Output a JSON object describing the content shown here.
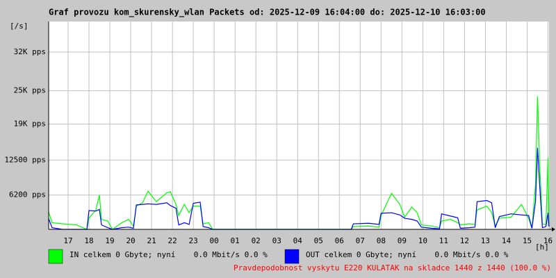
{
  "chart_data": {
    "type": "line",
    "title": "Graf provozu kom_skurensky_wlan Packets od: 2025-12-09 16:04:00 do: 2025-12-10 16:03:00",
    "ylabel": "[/s]",
    "xlabel": "[h]",
    "note": "Pravdepodobnost vyskytu E220 KULATAK na skladce 1440 z 1440 (100.0 %)",
    "xlim": [
      0.067,
      24.05
    ],
    "ylim": [
      0,
      37500
    ],
    "grid": true,
    "xticks": [
      {
        "value": 1,
        "label": "17"
      },
      {
        "value": 2,
        "label": "18"
      },
      {
        "value": 3,
        "label": "19"
      },
      {
        "value": 4,
        "label": "20"
      },
      {
        "value": 5,
        "label": "21"
      },
      {
        "value": 6,
        "label": "22"
      },
      {
        "value": 7,
        "label": "23"
      },
      {
        "value": 8,
        "label": "00"
      },
      {
        "value": 9,
        "label": "01"
      },
      {
        "value": 10,
        "label": "02"
      },
      {
        "value": 11,
        "label": "03"
      },
      {
        "value": 12,
        "label": "04"
      },
      {
        "value": 13,
        "label": "05"
      },
      {
        "value": 14,
        "label": "06"
      },
      {
        "value": 15,
        "label": "07"
      },
      {
        "value": 16,
        "label": "08"
      },
      {
        "value": 17,
        "label": "09"
      },
      {
        "value": 18,
        "label": "10"
      },
      {
        "value": 19,
        "label": "11"
      },
      {
        "value": 20,
        "label": "12"
      },
      {
        "value": 21,
        "label": "13"
      },
      {
        "value": 22,
        "label": "14"
      },
      {
        "value": 23,
        "label": "15"
      },
      {
        "value": 24,
        "label": "16"
      }
    ],
    "yticks": [
      {
        "value": 6200,
        "label": "6200 pps"
      },
      {
        "value": 12500,
        "label": "12500 pps"
      },
      {
        "value": 19000,
        "label": "19K pps"
      },
      {
        "value": 25000,
        "label": "25K pps"
      },
      {
        "value": 32000,
        "label": "32K pps"
      }
    ],
    "x": [
      0.07,
      0.23,
      0.73,
      1.4,
      1.9,
      2.0,
      2.33,
      2.5,
      2.6,
      2.9,
      3.13,
      3.57,
      3.9,
      4.13,
      4.27,
      4.57,
      4.83,
      5.23,
      5.73,
      5.9,
      6.17,
      6.3,
      6.57,
      6.8,
      7.0,
      7.33,
      7.47,
      7.73,
      7.93,
      14.57,
      14.67,
      15.4,
      15.9,
      16.0,
      16.5,
      16.9,
      17.13,
      17.47,
      17.73,
      17.93,
      18.4,
      18.8,
      18.9,
      19.33,
      19.67,
      19.8,
      20.23,
      20.5,
      20.6,
      21.07,
      21.3,
      21.47,
      21.67,
      22.23,
      22.73,
      23.07,
      23.23,
      23.4,
      23.5,
      23.6,
      23.73,
      23.9,
      24.0,
      24.05
    ],
    "series": [
      {
        "name": "IN celkem 0 Gbyte; nyní    0.0 Mbit/s 0.0 %",
        "color": "#00ff00",
        "values": [
          3100,
          1200,
          1000,
          800,
          0,
          2000,
          3500,
          6200,
          1800,
          1500,
          0,
          1200,
          1800,
          600,
          4200,
          4800,
          6900,
          5000,
          6600,
          6800,
          4500,
          2500,
          4500,
          3000,
          4200,
          4200,
          1000,
          1200,
          0,
          0,
          500,
          600,
          400,
          2500,
          6500,
          4500,
          2200,
          4000,
          3000,
          800,
          600,
          300,
          1500,
          1800,
          1200,
          800,
          1000,
          900,
          3500,
          4200,
          3000,
          600,
          2000,
          2200,
          4500,
          2000,
          200,
          8000,
          24000,
          12000,
          1000,
          800,
          13000,
          500
        ]
      },
      {
        "name": "OUT celkem 0 Gbyte; nyní    0.0 Mbit/s 0.0 %",
        "color": "#0000ff",
        "values": [
          1900,
          300,
          0,
          0,
          0,
          3400,
          3300,
          3600,
          800,
          300,
          0,
          300,
          400,
          200,
          4400,
          4500,
          4600,
          4500,
          4800,
          4300,
          3800,
          800,
          1200,
          900,
          4700,
          4900,
          500,
          300,
          0,
          0,
          1000,
          1100,
          900,
          2900,
          3000,
          2600,
          2000,
          1800,
          1500,
          400,
          200,
          100,
          2800,
          2400,
          2100,
          200,
          300,
          400,
          5000,
          5200,
          4800,
          300,
          2300,
          2800,
          2600,
          2500,
          200,
          5000,
          14700,
          8000,
          300,
          500,
          3000,
          500
        ]
      }
    ]
  }
}
